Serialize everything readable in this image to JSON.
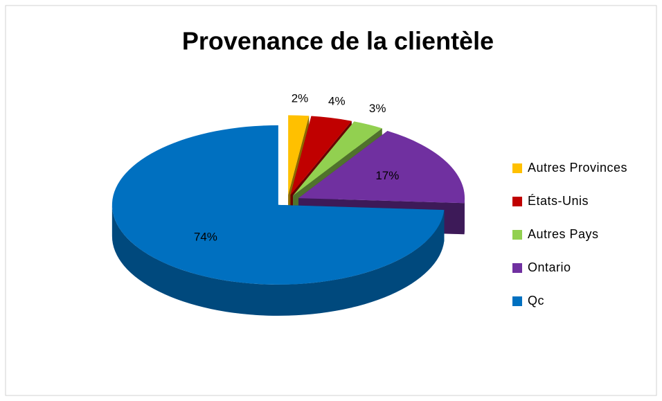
{
  "chart_data": {
    "type": "pie",
    "title": "Provenance de la clientèle",
    "categories": [
      "Autres Provinces",
      "États-Unis",
      "Autres Pays",
      "Ontario",
      "Qc"
    ],
    "values": [
      2,
      4,
      3,
      17,
      74
    ],
    "value_labels": [
      "2%",
      "4%",
      "3%",
      "17%",
      "74%"
    ],
    "colors": [
      "#ffc000",
      "#c00000",
      "#92d050",
      "#7030a0",
      "#0070c0"
    ],
    "legend": "right"
  }
}
